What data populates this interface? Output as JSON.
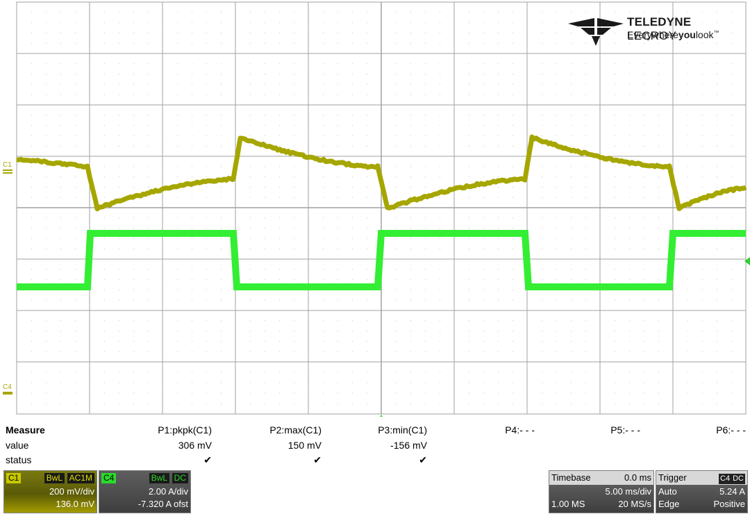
{
  "brand": {
    "name_bold": "TELEDYNE",
    "name_thin": "LECROY",
    "tag_pre": "Everywhere",
    "tag_bold": "you",
    "tag_post": "look",
    "tag_tm": "™"
  },
  "markers": {
    "c1": "C1",
    "c4": "C4"
  },
  "colors": {
    "c1": "#a6a600",
    "c4": "#33ee33",
    "grid": "#a0a0a0"
  },
  "measure": {
    "title": "Measure",
    "value_label": "value",
    "status_label": "status",
    "params": [
      {
        "name": "P1:pkpk(C1)",
        "value": "306 mV",
        "status": "✔"
      },
      {
        "name": "P2:max(C1)",
        "value": "150 mV",
        "status": "✔"
      },
      {
        "name": "P3:min(C1)",
        "value": "-156 mV",
        "status": "✔"
      },
      {
        "name": "P4:- - -",
        "value": "",
        "status": ""
      },
      {
        "name": "P5:- - -",
        "value": "",
        "status": ""
      },
      {
        "name": "P6:- - -",
        "value": "",
        "status": ""
      }
    ]
  },
  "c1_panel": {
    "name": "C1",
    "bw": "BwL",
    "coupling": "AC1M",
    "vdiv": "200 mV/div",
    "offset": "136.0 mV"
  },
  "c4_panel": {
    "name": "C4",
    "bw": "BwL",
    "coupling": "DC",
    "vdiv": "2.00 A/div",
    "offset": "-7.320 A ofst"
  },
  "timebase": {
    "title": "Timebase",
    "delay": "0.0 ms",
    "tdiv": "5.00 ms/div",
    "samples": "1.00 MS",
    "rate": "20 MS/s"
  },
  "trigger": {
    "title": "Trigger",
    "source": "C4",
    "coupling": "DC",
    "mode": "Auto",
    "level": "5.24 A",
    "type": "Edge",
    "slope": "Positive"
  }
}
